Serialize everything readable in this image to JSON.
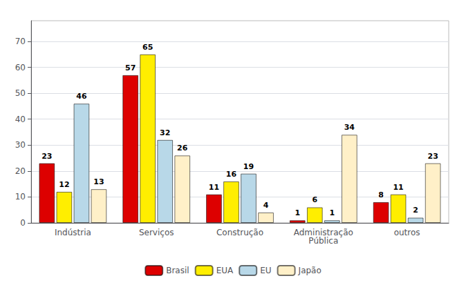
{
  "chart_data": {
    "type": "bar",
    "categories": [
      "Indústria",
      "Serviços",
      "Construção",
      "Administração\nPública",
      "outros"
    ],
    "series": [
      {
        "name": "Brasil",
        "color": "#dd0000",
        "values": [
          23,
          57,
          11,
          1,
          8
        ]
      },
      {
        "name": "EUA",
        "color": "#ffee00",
        "values": [
          12,
          65,
          16,
          6,
          11
        ]
      },
      {
        "name": "EU",
        "color": "#b8d8e8",
        "values": [
          46,
          32,
          19,
          1,
          2
        ]
      },
      {
        "name": "Japão",
        "color": "#fff0c8",
        "values": [
          13,
          26,
          4,
          34,
          23
        ]
      }
    ],
    "ylim": [
      0,
      78
    ],
    "yticks": [
      0,
      10,
      20,
      30,
      40,
      50,
      60,
      70
    ],
    "grid": true,
    "legend": "bottom",
    "data_labels": true
  }
}
